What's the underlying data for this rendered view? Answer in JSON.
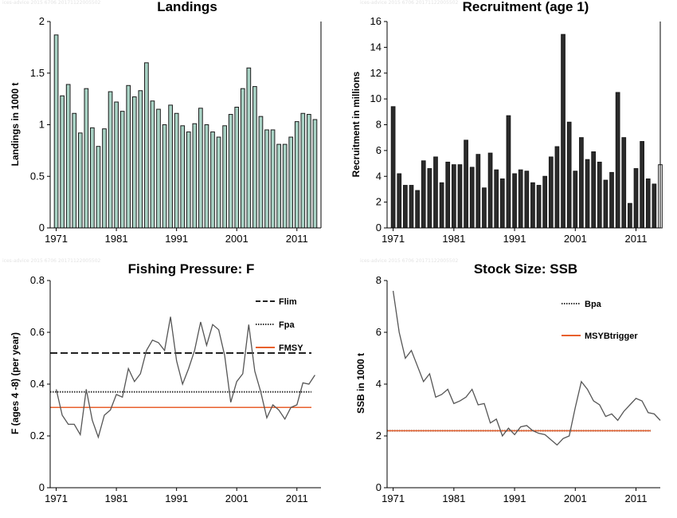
{
  "watermark": "ices-advice 2015 6706 20171122005502",
  "colors": {
    "landings": "#a9d3c5",
    "recruitment": "#2b2b2b",
    "line": "#555555",
    "flim": "#222222",
    "fpa": "#333333",
    "msy": "#e8602c",
    "axis": "#000000"
  },
  "chart_data": [
    {
      "type": "bar",
      "title": "Landings",
      "xlabel": "",
      "ylabel": "Landings in 1000 t",
      "ylim": [
        0,
        2
      ],
      "yticks": [
        0,
        0.5,
        1,
        1.5,
        2
      ],
      "ytick_labels": [
        "0",
        "0.5",
        "1",
        "1.5",
        "2"
      ],
      "xlim": [
        1970,
        2015
      ],
      "xticks": [
        1971,
        1981,
        1991,
        2001,
        2011
      ],
      "years": [
        1971,
        1972,
        1973,
        1974,
        1975,
        1976,
        1977,
        1978,
        1979,
        1980,
        1981,
        1982,
        1983,
        1984,
        1985,
        1986,
        1987,
        1988,
        1989,
        1990,
        1991,
        1992,
        1993,
        1994,
        1995,
        1996,
        1997,
        1998,
        1999,
        2000,
        2001,
        2002,
        2003,
        2004,
        2005,
        2006,
        2007,
        2008,
        2009,
        2010,
        2011,
        2012,
        2013,
        2014
      ],
      "values": [
        1.87,
        1.28,
        1.39,
        1.11,
        0.92,
        1.35,
        0.97,
        0.79,
        0.96,
        1.32,
        1.22,
        1.13,
        1.38,
        1.27,
        1.33,
        1.6,
        1.23,
        1.15,
        1.0,
        1.19,
        1.11,
        0.99,
        0.93,
        1.01,
        1.16,
        1.0,
        0.93,
        0.88,
        0.99,
        1.1,
        1.17,
        1.35,
        1.55,
        1.37,
        1.08,
        0.95,
        0.95,
        0.81,
        0.81,
        0.88,
        1.03,
        1.11,
        1.1,
        1.05
      ],
      "grid": false
    },
    {
      "type": "bar",
      "title": "Recruitment (age 1)",
      "xlabel": "",
      "ylabel": "Recruitment in millions",
      "ylim": [
        0,
        16
      ],
      "yticks": [
        0,
        2,
        4,
        6,
        8,
        10,
        12,
        14,
        16
      ],
      "ytick_labels": [
        "0",
        "2",
        "4",
        "6",
        "8",
        "10",
        "12",
        "14",
        "16"
      ],
      "xlim": [
        1970,
        2015
      ],
      "xticks": [
        1971,
        1981,
        1991,
        2001,
        2011
      ],
      "years": [
        1971,
        1972,
        1973,
        1974,
        1975,
        1976,
        1977,
        1978,
        1979,
        1980,
        1981,
        1982,
        1983,
        1984,
        1985,
        1986,
        1987,
        1988,
        1989,
        1990,
        1991,
        1992,
        1993,
        1994,
        1995,
        1996,
        1997,
        1998,
        1999,
        2000,
        2001,
        2002,
        2003,
        2004,
        2005,
        2006,
        2007,
        2008,
        2009,
        2010,
        2011,
        2012,
        2013,
        2014,
        2015
      ],
      "values": [
        9.4,
        4.2,
        3.3,
        3.3,
        2.9,
        5.2,
        4.6,
        5.5,
        3.5,
        5.1,
        4.9,
        4.9,
        6.8,
        4.7,
        5.7,
        3.1,
        5.8,
        4.5,
        3.8,
        8.7,
        4.2,
        4.5,
        4.4,
        3.5,
        3.3,
        4.0,
        5.5,
        6.3,
        15.0,
        8.2,
        4.4,
        7.0,
        5.3,
        5.9,
        5.1,
        3.7,
        4.3,
        10.5,
        7.0,
        1.9,
        4.6,
        6.7,
        3.8,
        3.4,
        4.9
      ],
      "open_bar_years": [
        2015
      ],
      "grid": false
    },
    {
      "type": "line",
      "title": "Fishing Pressure: F",
      "xlabel": "",
      "ylabel": "F (ages 4 -8) (per year)",
      "ylim": [
        0,
        0.8
      ],
      "yticks": [
        0,
        0.2,
        0.4,
        0.6,
        0.8
      ],
      "ytick_labels": [
        "0",
        "0.2",
        "0.4",
        "0.6",
        "0.8"
      ],
      "xlim": [
        1970,
        2015
      ],
      "xticks": [
        1971,
        1981,
        1991,
        2001,
        2011
      ],
      "x": [
        1971,
        1972,
        1973,
        1974,
        1975,
        1976,
        1977,
        1978,
        1979,
        1980,
        1981,
        1982,
        1983,
        1984,
        1985,
        1986,
        1987,
        1988,
        1989,
        1990,
        1991,
        1992,
        1993,
        1994,
        1995,
        1996,
        1997,
        1998,
        1999,
        2000,
        2001,
        2002,
        2003,
        2004,
        2005,
        2006,
        2007,
        2008,
        2009,
        2010,
        2011,
        2012,
        2013,
        2014
      ],
      "series": [
        {
          "values": [
            0.38,
            0.28,
            0.245,
            0.245,
            0.205,
            0.38,
            0.26,
            0.195,
            0.28,
            0.3,
            0.36,
            0.35,
            0.46,
            0.41,
            0.44,
            0.53,
            0.57,
            0.56,
            0.53,
            0.66,
            0.49,
            0.4,
            0.46,
            0.53,
            0.64,
            0.55,
            0.63,
            0.61,
            0.51,
            0.33,
            0.41,
            0.44,
            0.63,
            0.45,
            0.37,
            0.27,
            0.32,
            0.3,
            0.265,
            0.31,
            0.32,
            0.405,
            0.4,
            0.435
          ]
        }
      ],
      "reference_lines": [
        {
          "name": "Flim",
          "value": 0.52,
          "style": "dashed"
        },
        {
          "name": "Fpa",
          "value": 0.37,
          "style": "dotted"
        },
        {
          "name": "FMSY",
          "value": 0.31,
          "style": "solid"
        }
      ],
      "legend_position": "top-right",
      "grid": false
    },
    {
      "type": "line",
      "title": "Stock Size: SSB",
      "xlabel": "",
      "ylabel": "SSB in 1000 t",
      "ylim": [
        0,
        8
      ],
      "yticks": [
        0,
        2,
        4,
        6,
        8
      ],
      "ytick_labels": [
        "0",
        "2",
        "4",
        "6",
        "8"
      ],
      "xlim": [
        1970,
        2015
      ],
      "xticks": [
        1971,
        1981,
        1991,
        2001,
        2011
      ],
      "x": [
        1971,
        1972,
        1973,
        1974,
        1975,
        1976,
        1977,
        1978,
        1979,
        1980,
        1981,
        1982,
        1983,
        1984,
        1985,
        1986,
        1987,
        1988,
        1989,
        1990,
        1991,
        1992,
        1993,
        1994,
        1995,
        1996,
        1997,
        1998,
        1999,
        2000,
        2001,
        2002,
        2003,
        2004,
        2005,
        2006,
        2007,
        2008,
        2009,
        2010,
        2011,
        2012,
        2013,
        2014,
        2015
      ],
      "series": [
        {
          "values": [
            7.6,
            6.0,
            5.0,
            5.3,
            4.7,
            4.1,
            4.4,
            3.5,
            3.6,
            3.8,
            3.25,
            3.35,
            3.5,
            3.8,
            3.2,
            3.25,
            2.5,
            2.65,
            2.0,
            2.3,
            2.05,
            2.35,
            2.4,
            2.2,
            2.1,
            2.05,
            1.85,
            1.65,
            1.9,
            2.0,
            3.1,
            4.1,
            3.8,
            3.35,
            3.2,
            2.75,
            2.85,
            2.6,
            2.95,
            3.2,
            3.45,
            3.35,
            2.9,
            2.85,
            2.6
          ]
        }
      ],
      "reference_lines": [
        {
          "name": "Bpa",
          "value": 2.2,
          "style": "dotted"
        },
        {
          "name": "MSYBtrigger",
          "value": 2.2,
          "style": "solid"
        }
      ],
      "legend_position": "top-right",
      "grid": false
    }
  ]
}
